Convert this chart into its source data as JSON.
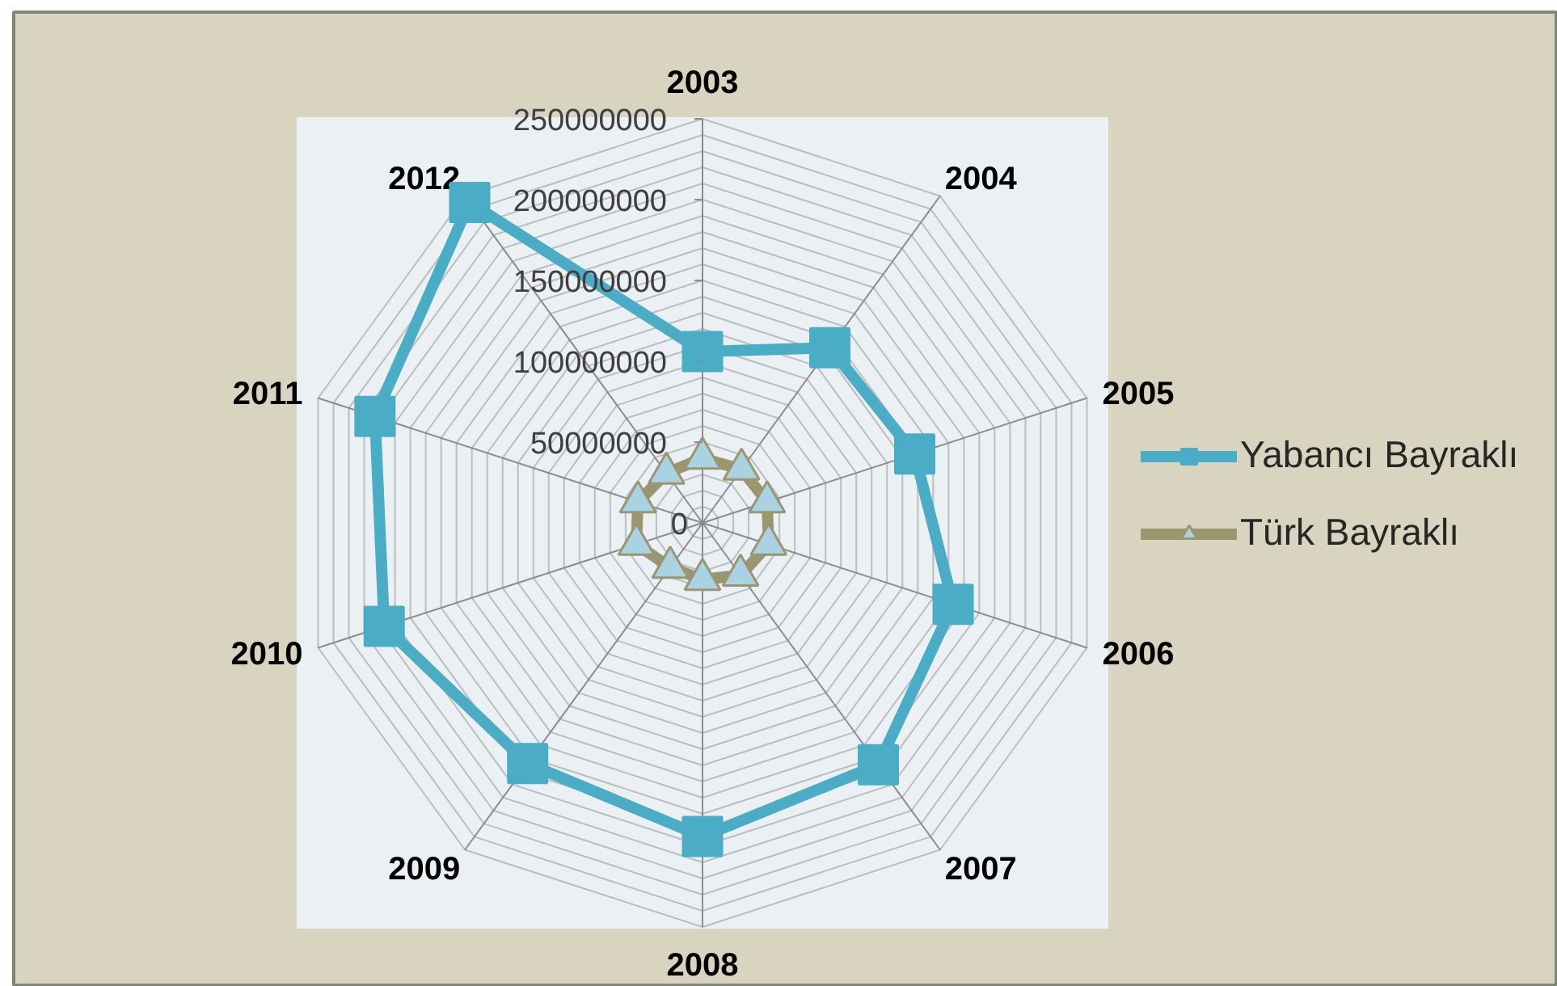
{
  "chart_data": {
    "type": "radar",
    "categories": [
      "2003",
      "2004",
      "2005",
      "2006",
      "2007",
      "2008",
      "2009",
      "2010",
      "2011",
      "2012"
    ],
    "ylim": [
      0,
      250000000
    ],
    "yticks": [
      0,
      50000000,
      100000000,
      150000000,
      200000000,
      250000000
    ],
    "series": [
      {
        "name": "Yabancı Bayraklı",
        "color": "#4bacc6",
        "marker": "square",
        "values": [
          106000000,
          134000000,
          138000000,
          163000000,
          185000000,
          194000000,
          184000000,
          207000000,
          213000000,
          245000000
        ]
      },
      {
        "name": "Türk Bayraklı",
        "color": "#9c9670",
        "colors": [
          "#a9d2e3",
          "#a9d2e3",
          "#a9d2e3",
          "#a9d2e3",
          "#a9d2e3",
          "#a9d2e3",
          "#a9d2e3",
          "#a9d2e3",
          "#a9d2e3",
          "#a9d2e3"
        ],
        "marker": "triangle",
        "values": [
          40000000,
          41000000,
          42000000,
          43000000,
          40000000,
          35000000,
          34000000,
          43000000,
          42000000,
          38000000
        ]
      }
    ],
    "grid": true,
    "legend": "right"
  }
}
